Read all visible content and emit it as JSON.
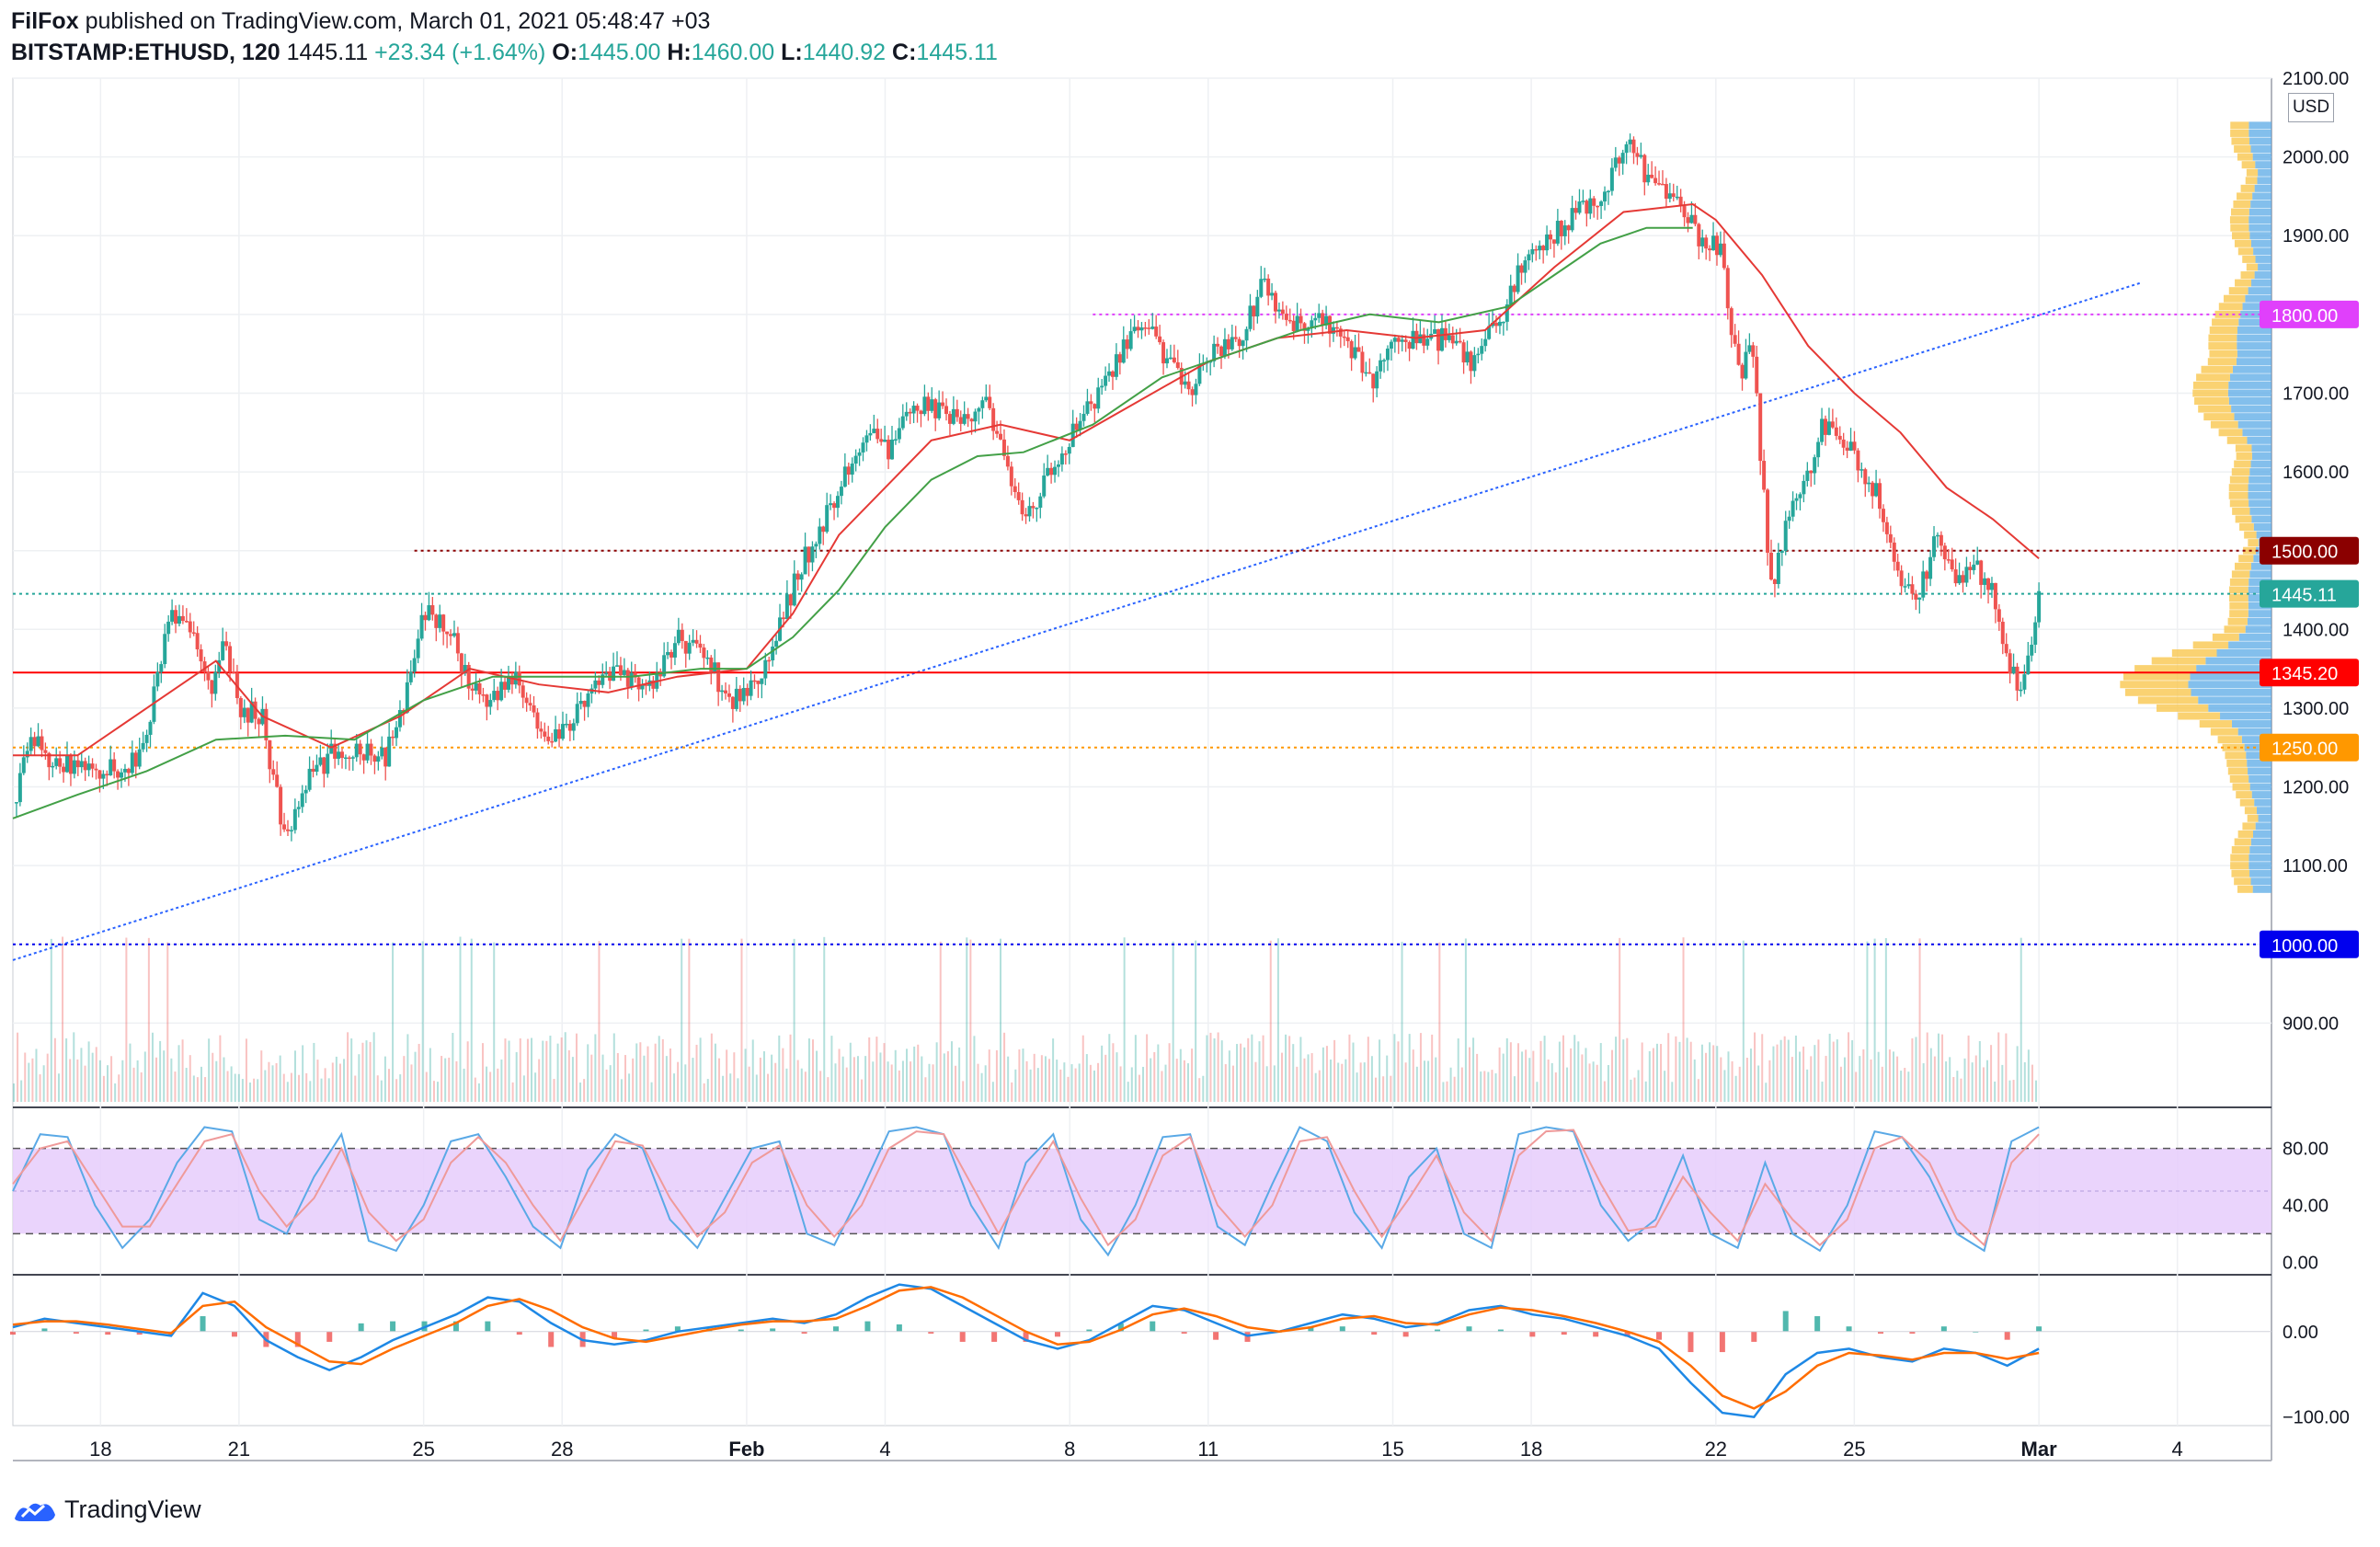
{
  "header": {
    "publisher": "FilFox",
    "published_text": "published on TradingView.com, March 01, 2021 05:48:47 +03",
    "symbol": "BITSTAMP:ETHUSD, 120",
    "last": "1445.11",
    "change": "+23.34 (+1.64%)",
    "o_label": "O:",
    "o": "1445.00",
    "h_label": "H:",
    "h": "1460.00",
    "l_label": "L:",
    "l": "1440.92",
    "c_label": "C:",
    "c": "1445.11"
  },
  "footer": {
    "brand": "TradingView"
  },
  "currency": "USD",
  "colors": {
    "up": "#26a69a",
    "down": "#ef5350",
    "ma_fast": "#e53935",
    "ma_slow": "#43a047",
    "trendline": "#2962ff",
    "stoch_band": "#e6ccfb",
    "macd": "#1e88e5",
    "signal": "#ff6d00",
    "vp_up": "#5aa9e6",
    "vp_down": "#f9c74f"
  },
  "chart_data": [
    {
      "type": "candlestick",
      "pane": "price",
      "interval": "120",
      "ylim": [
        800,
        2100
      ],
      "y_ticks": [
        "2100.00",
        "2000.00",
        "1900.00",
        "1800.00",
        "1700.00",
        "1600.00",
        "1500.00",
        "1400.00",
        "1300.00",
        "1200.00",
        "1100.00",
        "1000.00",
        "900.00"
      ],
      "x_ticks": [
        {
          "label": "18",
          "day": 18
        },
        {
          "label": "21",
          "day": 21
        },
        {
          "label": "25",
          "day": 25
        },
        {
          "label": "28",
          "day": 28
        },
        {
          "label": "Feb",
          "day": 32
        },
        {
          "label": "4",
          "day": 35
        },
        {
          "label": "8",
          "day": 39
        },
        {
          "label": "11",
          "day": 42
        },
        {
          "label": "15",
          "day": 46
        },
        {
          "label": "18",
          "day": 49
        },
        {
          "label": "22",
          "day": 53
        },
        {
          "label": "25",
          "day": 56
        },
        {
          "label": "Mar",
          "day": 60
        },
        {
          "label": "4",
          "day": 63
        }
      ],
      "x_range_days": [
        16.1,
        64.8
      ],
      "price_path": [
        [
          16.1,
          1180
        ],
        [
          16.5,
          1260
        ],
        [
          17.1,
          1225
        ],
        [
          17.6,
          1230
        ],
        [
          18.3,
          1220
        ],
        [
          18.9,
          1240
        ],
        [
          19.5,
          1420
        ],
        [
          20.0,
          1390
        ],
        [
          20.4,
          1330
        ],
        [
          20.7,
          1380
        ],
        [
          21.0,
          1300
        ],
        [
          21.5,
          1290
        ],
        [
          22.0,
          1130
        ],
        [
          22.5,
          1210
        ],
        [
          23.0,
          1240
        ],
        [
          23.5,
          1250
        ],
        [
          24.2,
          1240
        ],
        [
          24.7,
          1330
        ],
        [
          25.0,
          1420
        ],
        [
          25.5,
          1410
        ],
        [
          26.0,
          1330
        ],
        [
          26.5,
          1310
        ],
        [
          27.0,
          1340
        ],
        [
          27.7,
          1250
        ],
        [
          28.2,
          1280
        ],
        [
          28.6,
          1330
        ],
        [
          29.2,
          1340
        ],
        [
          30.0,
          1330
        ],
        [
          30.5,
          1390
        ],
        [
          31.1,
          1370
        ],
        [
          31.6,
          1310
        ],
        [
          32.0,
          1320
        ],
        [
          32.6,
          1380
        ],
        [
          33.1,
          1470
        ],
        [
          33.6,
          1530
        ],
        [
          34.1,
          1590
        ],
        [
          34.6,
          1650
        ],
        [
          35.1,
          1620
        ],
        [
          35.6,
          1690
        ],
        [
          36.1,
          1680
        ],
        [
          36.7,
          1660
        ],
        [
          37.1,
          1700
        ],
        [
          37.6,
          1610
        ],
        [
          38.0,
          1540
        ],
        [
          38.6,
          1600
        ],
        [
          39.1,
          1650
        ],
        [
          39.6,
          1700
        ],
        [
          40.1,
          1750
        ],
        [
          40.6,
          1790
        ],
        [
          41.1,
          1740
        ],
        [
          41.6,
          1700
        ],
        [
          42.1,
          1760
        ],
        [
          42.6,
          1760
        ],
        [
          43.2,
          1840
        ],
        [
          43.8,
          1780
        ],
        [
          44.3,
          1800
        ],
        [
          44.9,
          1780
        ],
        [
          45.5,
          1710
        ],
        [
          46.0,
          1780
        ],
        [
          46.6,
          1760
        ],
        [
          47.1,
          1770
        ],
        [
          47.7,
          1740
        ],
        [
          48.3,
          1790
        ],
        [
          48.9,
          1880
        ],
        [
          49.4,
          1900
        ],
        [
          50.0,
          1930
        ],
        [
          50.6,
          1960
        ],
        [
          51.1,
          2030
        ],
        [
          51.6,
          1960
        ],
        [
          52.2,
          1940
        ],
        [
          52.6,
          1900
        ],
        [
          53.1,
          1880
        ],
        [
          53.5,
          1720
        ],
        [
          53.8,
          1760
        ],
        [
          54.0,
          1600
        ],
        [
          54.2,
          1450
        ],
        [
          54.5,
          1530
        ],
        [
          54.8,
          1580
        ],
        [
          55.0,
          1600
        ],
        [
          55.3,
          1660
        ],
        [
          55.6,
          1640
        ],
        [
          56.0,
          1620
        ],
        [
          56.5,
          1570
        ],
        [
          57.0,
          1460
        ],
        [
          57.3,
          1440
        ],
        [
          57.6,
          1480
        ],
        [
          57.8,
          1530
        ],
        [
          58.2,
          1450
        ],
        [
          58.5,
          1480
        ],
        [
          59.0,
          1460
        ],
        [
          59.3,
          1360
        ],
        [
          59.6,
          1320
        ],
        [
          59.8,
          1360
        ],
        [
          60.0,
          1445
        ]
      ],
      "last_price": 1445.11,
      "moving_averages": [
        {
          "color": "#e53935",
          "path": [
            [
              16.1,
              1240
            ],
            [
              17.5,
              1240
            ],
            [
              19.0,
              1300
            ],
            [
              20.5,
              1360
            ],
            [
              21.5,
              1290
            ],
            [
              23.0,
              1250
            ],
            [
              24.5,
              1290
            ],
            [
              26.0,
              1350
            ],
            [
              27.5,
              1330
            ],
            [
              29.0,
              1320
            ],
            [
              30.5,
              1340
            ],
            [
              32.0,
              1350
            ],
            [
              33.0,
              1420
            ],
            [
              34.0,
              1520
            ],
            [
              35.0,
              1580
            ],
            [
              36.0,
              1640
            ],
            [
              37.5,
              1660
            ],
            [
              39.0,
              1640
            ],
            [
              40.5,
              1690
            ],
            [
              42.0,
              1740
            ],
            [
              43.5,
              1770
            ],
            [
              45.0,
              1780
            ],
            [
              46.5,
              1770
            ],
            [
              48.0,
              1780
            ],
            [
              49.5,
              1860
            ],
            [
              51.0,
              1930
            ],
            [
              52.5,
              1940
            ],
            [
              53.0,
              1920
            ],
            [
              54.0,
              1850
            ],
            [
              55.0,
              1760
            ],
            [
              56.0,
              1700
            ],
            [
              57.0,
              1650
            ],
            [
              58.0,
              1580
            ],
            [
              59.0,
              1540
            ],
            [
              60.0,
              1490
            ]
          ]
        },
        {
          "color": "#43a047",
          "path": [
            [
              16.1,
              1160
            ],
            [
              17.5,
              1190
            ],
            [
              19.0,
              1220
            ],
            [
              20.5,
              1260
            ],
            [
              22.0,
              1265
            ],
            [
              23.5,
              1260
            ],
            [
              25.0,
              1310
            ],
            [
              26.5,
              1340
            ],
            [
              28.0,
              1340
            ],
            [
              29.5,
              1340
            ],
            [
              31.0,
              1350
            ],
            [
              32.0,
              1350
            ],
            [
              33.0,
              1390
            ],
            [
              34.0,
              1450
            ],
            [
              35.0,
              1530
            ],
            [
              36.0,
              1590
            ],
            [
              37.0,
              1620
            ],
            [
              38.0,
              1625
            ],
            [
              39.5,
              1660
            ],
            [
              41.0,
              1720
            ],
            [
              42.5,
              1750
            ],
            [
              44.0,
              1780
            ],
            [
              45.5,
              1800
            ],
            [
              47.0,
              1790
            ],
            [
              48.5,
              1810
            ],
            [
              49.5,
              1850
            ],
            [
              50.5,
              1890
            ],
            [
              51.5,
              1910
            ],
            [
              52.5,
              1910
            ]
          ]
        }
      ],
      "horizontal_levels": [
        {
          "label": "1800.00",
          "price": 1800,
          "color": "#e040fb",
          "style": "dotted",
          "start_day": 39.5
        },
        {
          "label": "1500.00",
          "price": 1500,
          "color": "#8b0000",
          "style": "dotted",
          "start_day": 24.8
        },
        {
          "label": "1445.11",
          "price": 1445.11,
          "color": "#26a69a",
          "style": "dotted",
          "start_day": 16.1
        },
        {
          "label": "1345.20",
          "price": 1345.2,
          "color": "#ff0000",
          "style": "solid",
          "start_day": 16.1
        },
        {
          "label": "1250.00",
          "price": 1250,
          "color": "#ff9800",
          "style": "dotted",
          "start_day": 16.1
        },
        {
          "label": "1000.00",
          "price": 1000,
          "color": "#0000ee",
          "style": "dotted",
          "start_day": 16.1
        }
      ],
      "trendline": {
        "from": [
          16.1,
          980
        ],
        "to": [
          62.2,
          1840
        ],
        "color": "#2962ff"
      }
    },
    {
      "type": "line",
      "pane": "stochastic",
      "ylim": [
        -5,
        105
      ],
      "y_ticks": [
        "80.00",
        "40.00",
        "0.00"
      ],
      "band": [
        20,
        80
      ],
      "series": [
        {
          "color": "#5aa9e6",
          "values": [
            50,
            90,
            88,
            40,
            10,
            30,
            70,
            95,
            92,
            30,
            20,
            60,
            90,
            15,
            8,
            40,
            85,
            90,
            60,
            25,
            10,
            65,
            90,
            80,
            30,
            10,
            45,
            80,
            85,
            20,
            12,
            50,
            92,
            95,
            90,
            40,
            10,
            70,
            90,
            30,
            5,
            40,
            88,
            90,
            25,
            12,
            55,
            95,
            85,
            35,
            10,
            60,
            80,
            20,
            10,
            90,
            95,
            92,
            40,
            15,
            30,
            75,
            20,
            10,
            70,
            20,
            8,
            40,
            92,
            88,
            60,
            20,
            8,
            85,
            95
          ]
        },
        {
          "color": "#ef9a9a",
          "values": [
            55,
            80,
            85,
            55,
            25,
            25,
            55,
            85,
            90,
            50,
            25,
            45,
            80,
            35,
            15,
            30,
            70,
            88,
            70,
            40,
            15,
            50,
            85,
            82,
            45,
            18,
            35,
            70,
            82,
            40,
            18,
            40,
            80,
            92,
            90,
            55,
            20,
            55,
            85,
            45,
            12,
            30,
            75,
            88,
            40,
            18,
            40,
            85,
            88,
            50,
            18,
            45,
            75,
            35,
            15,
            75,
            92,
            93,
            55,
            22,
            25,
            60,
            35,
            15,
            55,
            30,
            12,
            30,
            80,
            88,
            70,
            30,
            12,
            70,
            90
          ]
        }
      ]
    },
    {
      "type": "line",
      "pane": "macd",
      "ylim": [
        -110,
        60
      ],
      "y_ticks": [
        "0.00",
        "−100.00"
      ],
      "series": [
        {
          "color": "#1e88e5",
          "values": [
            5,
            15,
            10,
            5,
            0,
            -5,
            45,
            30,
            -10,
            -30,
            -45,
            -30,
            -10,
            5,
            20,
            40,
            35,
            10,
            -10,
            -15,
            -10,
            0,
            5,
            10,
            15,
            10,
            20,
            40,
            55,
            50,
            30,
            10,
            -10,
            -20,
            -10,
            10,
            30,
            25,
            10,
            -5,
            0,
            10,
            20,
            15,
            5,
            10,
            25,
            30,
            20,
            15,
            5,
            -5,
            -20,
            -60,
            -95,
            -100,
            -50,
            -25,
            -20,
            -30,
            -35,
            -20,
            -25,
            -40,
            -20
          ]
        },
        {
          "color": "#ff6d00",
          "values": [
            8,
            12,
            12,
            8,
            3,
            -2,
            30,
            35,
            5,
            -15,
            -35,
            -38,
            -20,
            -5,
            10,
            30,
            38,
            25,
            5,
            -8,
            -12,
            -5,
            2,
            8,
            12,
            12,
            15,
            30,
            48,
            52,
            40,
            20,
            0,
            -15,
            -12,
            2,
            20,
            27,
            18,
            5,
            0,
            5,
            15,
            18,
            10,
            8,
            20,
            28,
            25,
            18,
            10,
            0,
            -12,
            -40,
            -75,
            -90,
            -70,
            -40,
            -25,
            -28,
            -33,
            -25,
            -25,
            -32,
            -25
          ]
        }
      ]
    }
  ]
}
